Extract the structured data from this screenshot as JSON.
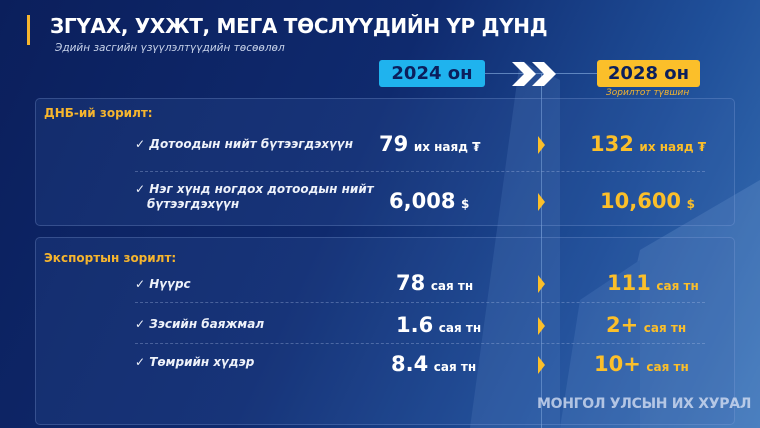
{
  "header": {
    "title": "ЗГҮАХ, УХЖТ, МЕГА ТӨСЛҮҮДИЙН ҮР ДҮНД",
    "subtitle": "Эдийн засгийн үзүүлэлтүүдийн төсөөлөл"
  },
  "years": {
    "current": "2024 он",
    "target": "2028 он",
    "target_caption": "Зорилтот түвшин"
  },
  "colors": {
    "accent": "#fbbf2a",
    "current_year": "#1fb3ee",
    "background": "#0f2a6e"
  },
  "gdp": {
    "heading": "ДНБ-ий зорилт:",
    "rows": [
      {
        "check": "✓",
        "label": "Дотоодын нийт бүтээгдэхүүн",
        "v2024": "79",
        "u2024": "их наяд ₮",
        "v2028": "132",
        "u2028": "их наяд ₮"
      },
      {
        "check": "✓",
        "label": "Нэг хүнд ногдох дотоодын нийт бүтээгдэхүүн",
        "v2024": "6,008",
        "u2024": "$",
        "v2028": "10,600",
        "u2028": "$"
      }
    ]
  },
  "export": {
    "heading": "Экспортын зорилт:",
    "rows": [
      {
        "check": "✓",
        "label": "Нүүрс",
        "v2024": "78",
        "u2024": "сая тн",
        "v2028": "111",
        "u2028": "сая тн"
      },
      {
        "check": "✓",
        "label": "Зэсийн баяжмал",
        "v2024": "1.6",
        "u2024": "сая тн",
        "v2028": "2+",
        "u2028": "сая тн"
      },
      {
        "check": "✓",
        "label": "Төмрийн хүдэр",
        "v2024": "8.4",
        "u2024": "сая тн",
        "v2028": "10+",
        "u2028": "сая тн"
      }
    ]
  },
  "watermark": "МОНГОЛ УЛСЫН ИХ ХУРАЛ"
}
